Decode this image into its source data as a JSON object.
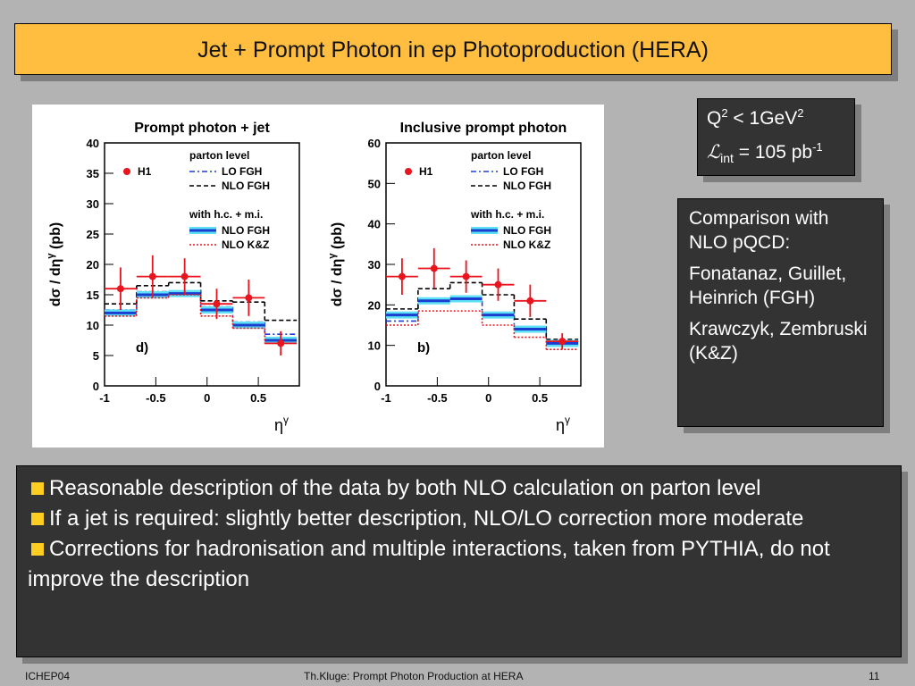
{
  "title": "Jet + Prompt Photon in ep Photoproduction (HERA)",
  "info_box": {
    "line1": [
      "Q",
      "2",
      " < 1GeV",
      "2"
    ],
    "line2": [
      "ℒ",
      "int",
      " = 105 pb",
      "-1"
    ]
  },
  "comparison_box": [
    "Comparison with NLO pQCD:",
    "Fonatanaz, Guillet, Heinrich (FGH)",
    "Krawczyk, Zembruski (K&Z)"
  ],
  "bullets": [
    "Reasonable description of the data by both NLO calculation on parton level",
    "If a jet is required: slightly better description, NLO/LO correction more moderate",
    "Corrections for hadronisation and multiple interactions, taken from PYTHIA,  do not improve the description"
  ],
  "footer": {
    "left": "ICHEP04",
    "center": "Th.Kluge: Prompt Photon Production at HERA",
    "right": "11"
  },
  "chart_data": [
    {
      "type": "histogram",
      "title": "Prompt photon + jet",
      "panel_label": "d)",
      "xlabel": [
        "η",
        "γ"
      ],
      "ylabel": [
        "dσ / dη",
        "γ",
        "  (pb)"
      ],
      "bins": [
        -1,
        -0.6875,
        -0.375,
        -0.0625,
        0.25,
        0.5625,
        0.875
      ],
      "xlim": [
        -1,
        0.9
      ],
      "xticks": [
        -1,
        -0.5,
        0,
        0.5
      ],
      "ylim": [
        0,
        40
      ],
      "yticks": [
        0,
        5,
        10,
        15,
        20,
        25,
        30,
        35,
        40
      ],
      "legend_groups": [
        "parton level",
        "with h.c. + m.i."
      ],
      "data": {
        "name": "H1",
        "color": "#e8141e",
        "values": [
          16,
          18,
          18,
          13.5,
          14.5,
          7
        ],
        "errors": [
          3.5,
          3.5,
          3,
          2.5,
          3,
          2
        ]
      },
      "series": [
        {
          "name": "LO FGH",
          "color": "#1a3fd0",
          "style": "dashdot",
          "group": 0,
          "values": [
            12.5,
            15.5,
            15.5,
            13,
            10.5,
            8.5
          ]
        },
        {
          "name": "NLO FGH",
          "color": "#000000",
          "style": "dashed",
          "group": 0,
          "values": [
            13.5,
            16.5,
            17,
            14,
            13.8,
            10.8
          ]
        },
        {
          "name": "NLO FGH",
          "color": "#1a3fd0",
          "style": "band",
          "group": 1,
          "values": [
            12,
            15,
            15.2,
            12.5,
            10,
            7.5
          ]
        },
        {
          "name": "NLO K&Z",
          "color": "#e8141e",
          "style": "dotted",
          "group": 1,
          "values": [
            11.5,
            14.5,
            15,
            11.5,
            9.5,
            7
          ]
        }
      ]
    },
    {
      "type": "histogram",
      "title": "Inclusive prompt photon",
      "panel_label": "b)",
      "xlabel": [
        "η",
        "γ"
      ],
      "ylabel": [
        "dσ / dη",
        "γ",
        "  (pb)"
      ],
      "bins": [
        -1,
        -0.6875,
        -0.375,
        -0.0625,
        0.25,
        0.5625,
        0.875
      ],
      "xlim": [
        -1,
        0.9
      ],
      "xticks": [
        -1,
        -0.5,
        0,
        0.5
      ],
      "ylim": [
        0,
        60
      ],
      "yticks": [
        0,
        10,
        20,
        30,
        40,
        50,
        60
      ],
      "legend_groups": [
        "parton level",
        "with h.c. + m.i."
      ],
      "data": {
        "name": "H1",
        "color": "#e8141e",
        "values": [
          27,
          29,
          27,
          25,
          21,
          11
        ],
        "errors": [
          4.5,
          5,
          4,
          4,
          4,
          2
        ]
      },
      "series": [
        {
          "name": "LO FGH",
          "color": "#1a3fd0",
          "style": "dashdot",
          "group": 0,
          "values": [
            16,
            21,
            21,
            17.5,
            14,
            11
          ]
        },
        {
          "name": "NLO FGH",
          "color": "#000000",
          "style": "dashed",
          "group": 0,
          "values": [
            19,
            24,
            25.5,
            22.5,
            16.5,
            11.5
          ]
        },
        {
          "name": "NLO FGH",
          "color": "#1a3fd0",
          "style": "band",
          "group": 1,
          "values": [
            17.5,
            21,
            21.5,
            17.5,
            14,
            10.5
          ]
        },
        {
          "name": "NLO K&Z",
          "color": "#e8141e",
          "style": "dotted",
          "group": 1,
          "values": [
            15,
            18.5,
            18.5,
            15,
            12,
            9
          ]
        }
      ]
    }
  ]
}
